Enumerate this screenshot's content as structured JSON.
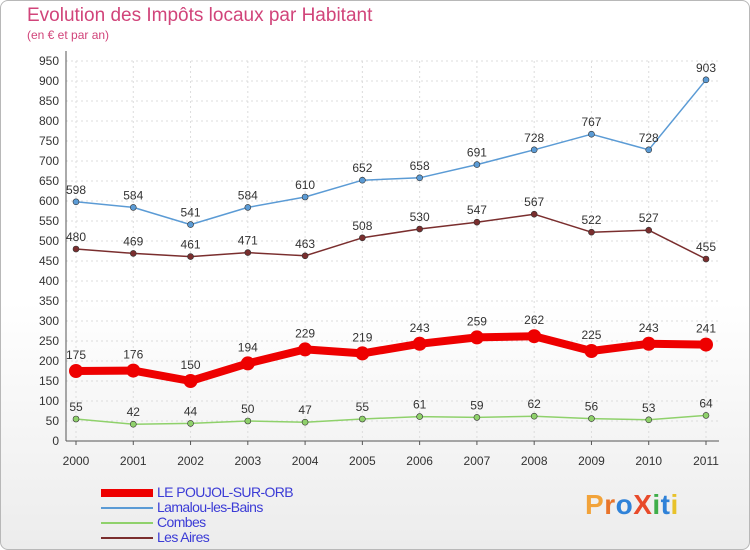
{
  "header": {
    "title": "Evolution des Impôts locaux par Habitant",
    "subtitle": "(en € et par an)"
  },
  "logo": {
    "text": "ProXiti",
    "colors": [
      "#f2a33a",
      "#e8742a",
      "#2f82d8",
      "#e84a2a",
      "#3fae49",
      "#2f82d8",
      "#e8c22a"
    ]
  },
  "chart_data": {
    "type": "line",
    "title": "Evolution des Impôts locaux par Habitant",
    "subtitle": "(en € et par an)",
    "xlabel": "",
    "ylabel": "",
    "x": [
      "2000",
      "2001",
      "2002",
      "2003",
      "2004",
      "2005",
      "2006",
      "2007",
      "2008",
      "2009",
      "2010",
      "2011"
    ],
    "ylim": [
      0,
      950
    ],
    "yticks": [
      0,
      50,
      100,
      150,
      200,
      250,
      300,
      350,
      400,
      450,
      500,
      550,
      600,
      650,
      700,
      750,
      800,
      850,
      900,
      950
    ],
    "grid": true,
    "legend_position": "bottom-left",
    "series": [
      {
        "name": "Lamalou-les-Bains",
        "color": "#5b9bd5",
        "values": [
          598,
          584,
          541,
          584,
          610,
          652,
          658,
          691,
          728,
          767,
          728,
          903
        ]
      },
      {
        "name": "Les Aires",
        "color": "#7a2e2e",
        "values": [
          480,
          469,
          461,
          471,
          463,
          508,
          530,
          547,
          567,
          522,
          527,
          455
        ]
      },
      {
        "name": "LE POUJOL-SUR-ORB",
        "color": "#ee0000",
        "values": [
          175,
          176,
          150,
          194,
          229,
          219,
          243,
          259,
          262,
          225,
          243,
          241
        ]
      },
      {
        "name": "Combes",
        "color": "#8fd16b",
        "values": [
          55,
          42,
          44,
          50,
          47,
          55,
          61,
          59,
          62,
          56,
          53,
          64
        ]
      }
    ],
    "legend": [
      "LE POUJOL-SUR-ORB",
      "Lamalou-les-Bains",
      "Combes",
      "Les Aires"
    ]
  }
}
